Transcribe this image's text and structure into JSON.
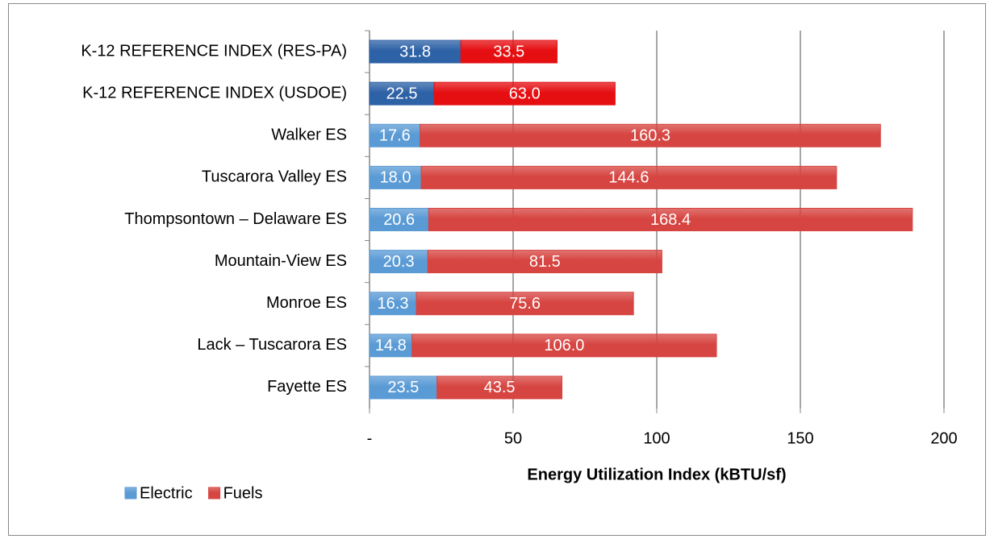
{
  "chart_data": {
    "type": "stacked-barh",
    "xlabel": "Energy Utilization Index (kBTU/sf)",
    "categories": [
      "K-12 REFERENCE INDEX (RES-PA)",
      "K-12 REFERENCE INDEX (USDOE)",
      "Walker ES",
      "Tuscarora Valley ES",
      "Thompsontown – Delaware ES",
      "Mountain-View ES",
      "Monroe ES",
      "Lack – Tuscarora ES",
      "Fayette ES"
    ],
    "series": [
      {
        "name": "Electric",
        "color": "#5b9bd5",
        "colors": [
          "#2e62a6",
          "#2e62a6",
          "#5b9bd5",
          "#5b9bd5",
          "#5b9bd5",
          "#5b9bd5",
          "#5b9bd5",
          "#5b9bd5",
          "#5b9bd5"
        ],
        "values": [
          31.8,
          22.5,
          17.6,
          18.0,
          20.6,
          20.3,
          16.3,
          14.8,
          23.5
        ],
        "value_labels": [
          "31.8",
          "22.5",
          "17.6",
          "18.0",
          "20.6",
          "20.3",
          "16.3",
          "14.8",
          "23.5"
        ]
      },
      {
        "name": "Fuels",
        "color": "#d64541",
        "colors": [
          "#e50f12",
          "#e50f12",
          "#d64541",
          "#d64541",
          "#d64541",
          "#d64541",
          "#d64541",
          "#d64541",
          "#d64541"
        ],
        "values": [
          33.5,
          63.0,
          160.3,
          144.6,
          168.4,
          81.5,
          75.6,
          106.0,
          43.5
        ],
        "value_labels": [
          "33.5",
          "63.0",
          "160.3",
          "144.6",
          "168.4",
          "81.5",
          "75.6",
          "106.0",
          "43.5"
        ]
      }
    ],
    "xlim": [
      0,
      200
    ],
    "xticks": [
      {
        "value": 0,
        "label": "-"
      },
      50,
      100,
      150,
      200
    ],
    "grid": true,
    "legend": "bottom-left"
  }
}
